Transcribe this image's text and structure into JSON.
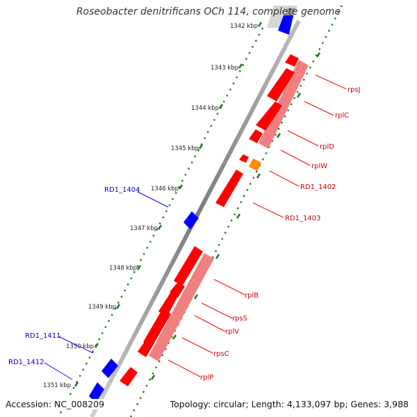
{
  "title": "Roseobacter denitrificans OCh 114, complete genome",
  "footer": {
    "accession": "Accession: NC_008209",
    "topology": "Topology: circular; Length: 4,133,097 bp; Genes: 3,988"
  },
  "colors": {
    "red": "#ff0000",
    "pink": "#f08080",
    "blue": "#0000ff",
    "orange": "#ff8c00",
    "backbone": "#8a8a8a",
    "tick": "#1e7b1e",
    "label_red": "#cc0000",
    "label_blue": "#0000cc"
  },
  "ticks": [
    "1342 kbp",
    "1343 kbp",
    "1344 kbp",
    "1345 kbp",
    "1346 kbp",
    "1347 kbp",
    "1348 kbp",
    "1349 kbp",
    "1350 kbp",
    "1351 kbp"
  ],
  "features": [
    {
      "name": "rpsJ",
      "color": "red"
    },
    {
      "name": "rplC",
      "color": "red"
    },
    {
      "name": "rplD",
      "color": "red"
    },
    {
      "name": "rplW",
      "color": "red"
    },
    {
      "name": "RD1_1402",
      "color": "orange"
    },
    {
      "name": "RD1_1403",
      "color": "red"
    },
    {
      "name": "RD1_1404",
      "color": "blue"
    },
    {
      "name": "rplB",
      "color": "red"
    },
    {
      "name": "rpsS",
      "color": "red"
    },
    {
      "name": "rplV",
      "color": "red"
    },
    {
      "name": "rpsC",
      "color": "red"
    },
    {
      "name": "rplP",
      "color": "red"
    },
    {
      "name": "RD1_1411",
      "color": "blue"
    },
    {
      "name": "RD1_1412",
      "color": "blue"
    }
  ]
}
